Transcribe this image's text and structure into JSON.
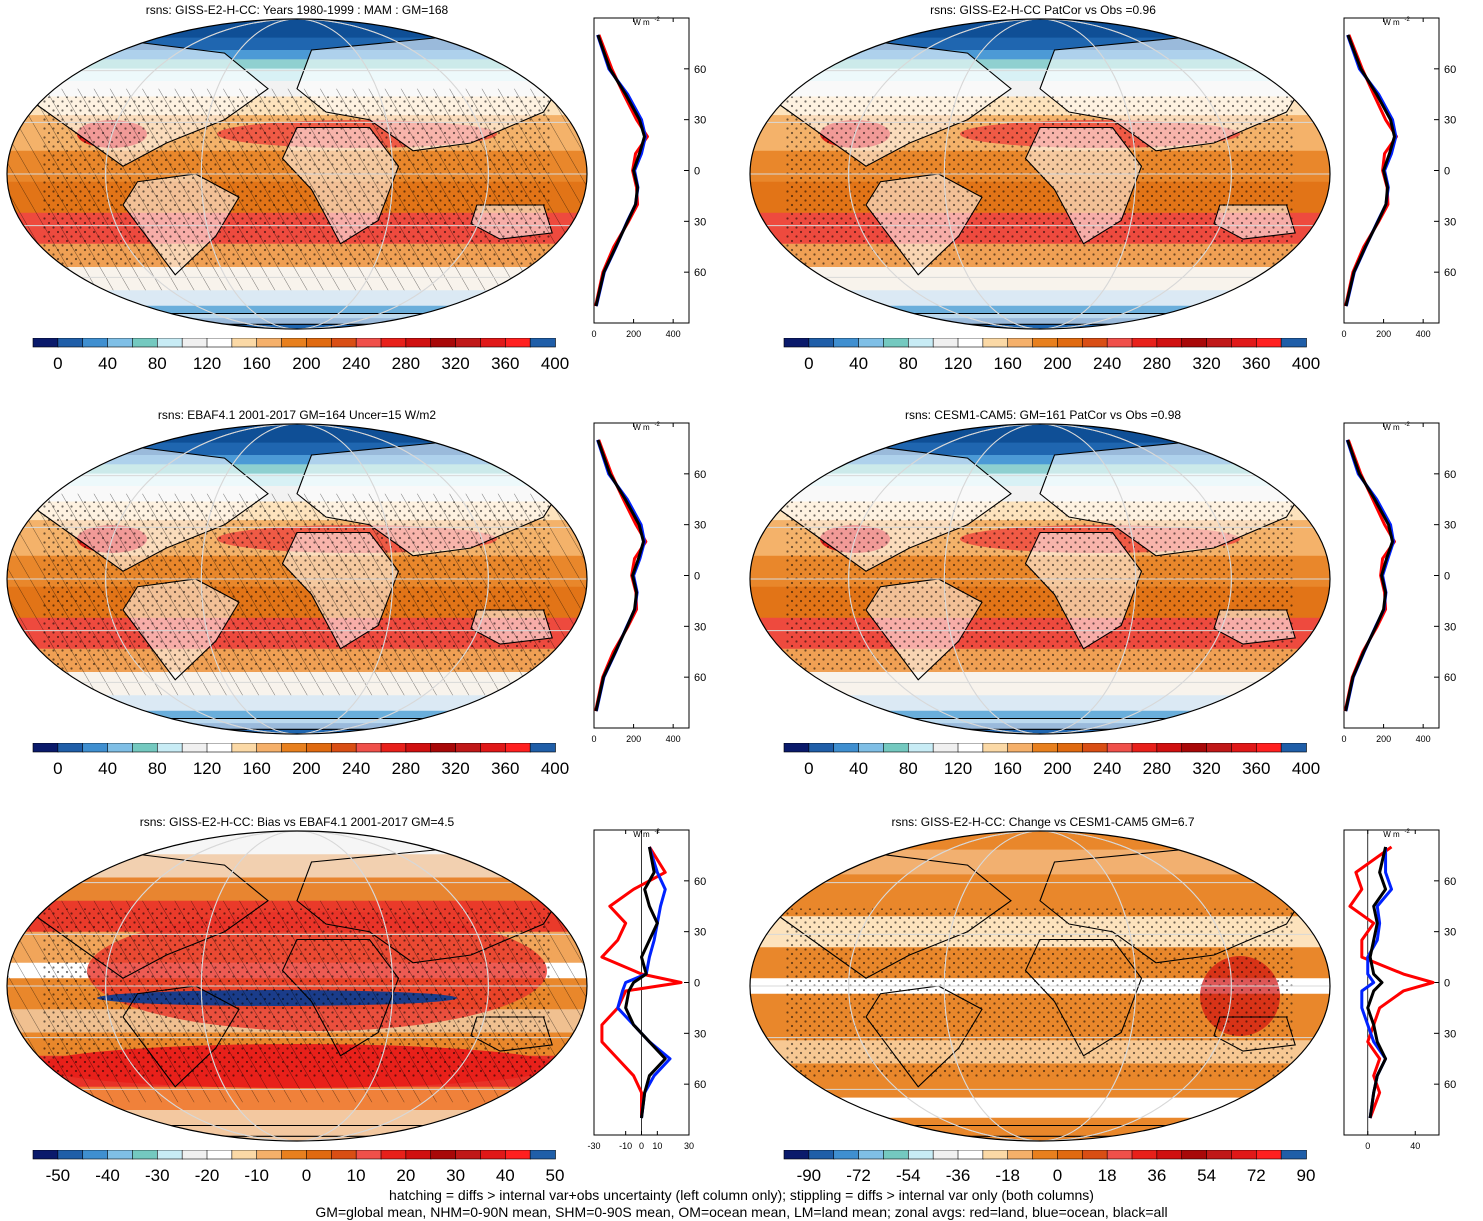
{
  "panels": [
    {
      "id": "p1",
      "title": "rsns: GISS-E2-H-CC: Years 1980-1999 : MAM : GM=168",
      "kind": "abs",
      "cbar": "abs",
      "zonal_ticks": [
        "0",
        "200",
        "400"
      ],
      "zonal_range": [
        0,
        480
      ],
      "lat_labels": [
        "60N",
        "30N",
        "0",
        "30S",
        "60S"
      ]
    },
    {
      "id": "p2",
      "title": "rsns: GISS-E2-H-CC PatCor vs Obs =0.96",
      "kind": "abs",
      "cbar": "abs",
      "zonal_ticks": [
        "0",
        "200",
        "400"
      ],
      "zonal_range": [
        0,
        480
      ],
      "lat_labels": [
        "60N",
        "30N",
        "0",
        "30S",
        "60S"
      ]
    },
    {
      "id": "p3",
      "title": "rsns: EBAF4.1 2001-2017 GM=164 Uncer=15 W/m2",
      "kind": "abs",
      "cbar": "abs",
      "zonal_ticks": [
        "0",
        "200",
        "400"
      ],
      "zonal_range": [
        0,
        480
      ],
      "lat_labels": [
        "60N",
        "30N",
        "0",
        "30S",
        "60S"
      ]
    },
    {
      "id": "p4",
      "title": "rsns: CESM1-CAM5: GM=161 PatCor vs Obs =0.98",
      "kind": "abs",
      "cbar": "abs",
      "zonal_ticks": [
        "0",
        "200",
        "400"
      ],
      "zonal_range": [
        0,
        480
      ],
      "lat_labels": [
        "60N",
        "30N",
        "0",
        "30S",
        "60S"
      ]
    },
    {
      "id": "p5",
      "title": "rsns: GISS-E2-H-CC: Bias vs EBAF4.1 2001-2017 GM=4.5",
      "kind": "bias",
      "cbar": "bias",
      "zonal_ticks": [
        "-30",
        "-10",
        "0",
        "10",
        "30"
      ],
      "zonal_range": [
        -30,
        30
      ],
      "lat_labels": [
        "60N",
        "30N",
        "0",
        "30S",
        "60S"
      ]
    },
    {
      "id": "p6",
      "title": "rsns: GISS-E2-H-CC: Change vs CESM1-CAM5 GM=6.7",
      "kind": "change",
      "cbar": "change",
      "zonal_ticks": [
        "0",
        "40"
      ],
      "zonal_range": [
        -20,
        60
      ],
      "lat_labels": [
        "60N",
        "30N",
        "0",
        "30S",
        "60S"
      ]
    }
  ],
  "zonal_unit": "W m",
  "zonal_unit_sup": "-2",
  "colorbars": {
    "abs": {
      "labels": [
        "0",
        "40",
        "80",
        "120",
        "160",
        "200",
        "240",
        "280",
        "320",
        "360",
        "400"
      ],
      "colors": [
        "#0a1a6b",
        "#1f5ea8",
        "#3f8fd0",
        "#7fbfe6",
        "#74c9c0",
        "#c8ecf5",
        "#f0f0f0",
        "#ffffff",
        "#fbd9a6",
        "#f5b06a",
        "#e8801e",
        "#e06a10",
        "#d94e14",
        "#f0504a",
        "#e8201a",
        "#d01010",
        "#a80808",
        "#c01818",
        "#e01818",
        "#ff2020",
        "#1f5ea8"
      ]
    },
    "bias": {
      "labels": [
        "-50",
        "-40",
        "-30",
        "-20",
        "-10",
        "0",
        "10",
        "20",
        "30",
        "40",
        "50"
      ],
      "colors": [
        "#0a1a6b",
        "#1f5ea8",
        "#3f8fd0",
        "#7fbfe6",
        "#74c9c0",
        "#c8ecf5",
        "#f0f0f0",
        "#ffffff",
        "#fbd9a6",
        "#f5b06a",
        "#e8801e",
        "#e06a10",
        "#d94e14",
        "#f0504a",
        "#e8201a",
        "#d01010",
        "#a80808",
        "#c01818",
        "#e01818",
        "#ff2020",
        "#1f5ea8"
      ]
    },
    "change": {
      "labels": [
        "-90",
        "-72",
        "-54",
        "-36",
        "-18",
        "0",
        "18",
        "36",
        "54",
        "72",
        "90"
      ],
      "colors": [
        "#0a1a6b",
        "#1f5ea8",
        "#3f8fd0",
        "#7fbfe6",
        "#74c9c0",
        "#c8ecf5",
        "#f0f0f0",
        "#ffffff",
        "#fbd9a6",
        "#f5b06a",
        "#e8801e",
        "#e06a10",
        "#d94e14",
        "#f0504a",
        "#e8201a",
        "#d01010",
        "#a80808",
        "#c01818",
        "#e01818",
        "#ff2020",
        "#1f5ea8"
      ]
    }
  },
  "footer": {
    "line1": "hatching = diffs > internal var+obs uncertainty (left column only); stippling = diffs > internal var only (both columns)",
    "line2": "GM=global mean, NHM=0-90N mean, SHM=0-90S mean, OM=ocean mean, LM=land mean; zonal avgs: red=land, blue=ocean, black=all"
  },
  "chart_data": [
    {
      "type": "heatmap",
      "title": "rsns: GISS-E2-H-CC: Years 1980-1999 : MAM : GM=168",
      "units": "W m-2",
      "colorbar_range": [
        0,
        400
      ],
      "zonal_profile": {
        "lat": [
          80,
          60,
          45,
          30,
          20,
          10,
          0,
          -10,
          -20,
          -30,
          -45,
          -60,
          -80
        ],
        "all": [
          20,
          80,
          160,
          230,
          255,
          230,
          200,
          220,
          210,
          170,
          110,
          50,
          10
        ],
        "land": [
          25,
          90,
          150,
          215,
          270,
          210,
          195,
          215,
          220,
          175,
          100,
          45,
          8
        ],
        "ocean": [
          18,
          75,
          170,
          240,
          260,
          240,
          205,
          222,
          210,
          168,
          112,
          52,
          12
        ]
      }
    },
    {
      "type": "heatmap",
      "title": "rsns: GISS-E2-H-CC PatCor vs Obs =0.96",
      "units": "W m-2",
      "colorbar_range": [
        0,
        400
      ],
      "zonal_profile": {
        "lat": [
          80,
          60,
          45,
          30,
          20,
          10,
          0,
          -10,
          -20,
          -30,
          -45,
          -60,
          -80
        ],
        "all": [
          20,
          85,
          165,
          235,
          255,
          230,
          200,
          220,
          212,
          172,
          108,
          50,
          10
        ],
        "land": [
          25,
          92,
          150,
          210,
          265,
          205,
          195,
          218,
          222,
          176,
          100,
          45,
          8
        ],
        "ocean": [
          18,
          78,
          175,
          245,
          262,
          240,
          205,
          224,
          212,
          170,
          110,
          52,
          12
        ]
      }
    },
    {
      "type": "heatmap",
      "title": "rsns: EBAF4.1 2001-2017 GM=164 Uncer=15 W/m2",
      "units": "W m-2",
      "colorbar_range": [
        0,
        400
      ],
      "zonal_profile": {
        "lat": [
          80,
          60,
          45,
          30,
          20,
          10,
          0,
          -10,
          -20,
          -30,
          -45,
          -60,
          -80
        ],
        "all": [
          20,
          80,
          158,
          228,
          250,
          225,
          195,
          215,
          205,
          168,
          108,
          48,
          10
        ],
        "land": [
          24,
          88,
          148,
          212,
          262,
          205,
          190,
          212,
          215,
          172,
          98,
          44,
          8
        ],
        "ocean": [
          18,
          74,
          168,
          238,
          255,
          232,
          200,
          218,
          206,
          166,
          110,
          50,
          12
        ]
      }
    },
    {
      "type": "heatmap",
      "title": "rsns: CESM1-CAM5: GM=161 PatCor vs Obs =0.98",
      "units": "W m-2",
      "colorbar_range": [
        0,
        400
      ],
      "zonal_profile": {
        "lat": [
          80,
          60,
          45,
          30,
          20,
          10,
          0,
          -10,
          -20,
          -30,
          -45,
          -60,
          -80
        ],
        "all": [
          18,
          78,
          155,
          225,
          245,
          215,
          190,
          210,
          200,
          162,
          100,
          45,
          8
        ],
        "land": [
          22,
          85,
          145,
          205,
          255,
          195,
          185,
          205,
          210,
          168,
          95,
          42,
          6
        ],
        "ocean": [
          16,
          72,
          165,
          235,
          250,
          222,
          195,
          212,
          202,
          160,
          102,
          47,
          10
        ]
      }
    },
    {
      "type": "heatmap",
      "title": "rsns: GISS-E2-H-CC: Bias vs EBAF4.1 2001-2017 GM=4.5",
      "units": "W m-2",
      "colorbar_range": [
        -50,
        50
      ],
      "zonal_profile": {
        "lat": [
          80,
          65,
          55,
          45,
          35,
          25,
          15,
          5,
          0,
          -5,
          -15,
          -25,
          -35,
          -45,
          -55,
          -65,
          -80
        ],
        "all": [
          5,
          8,
          2,
          5,
          10,
          5,
          0,
          3,
          -5,
          -8,
          -10,
          -5,
          5,
          15,
          5,
          2,
          0
        ],
        "land": [
          5,
          15,
          -5,
          -20,
          -10,
          -15,
          -25,
          0,
          25,
          -10,
          -15,
          -25,
          -25,
          -15,
          -5,
          0,
          0
        ],
        "ocean": [
          5,
          10,
          15,
          12,
          10,
          8,
          5,
          3,
          -10,
          -12,
          -15,
          -5,
          5,
          18,
          8,
          2,
          0
        ]
      }
    },
    {
      "type": "heatmap",
      "title": "rsns: GISS-E2-H-CC: Change vs CESM1-CAM5 GM=6.7",
      "units": "W m-2",
      "colorbar_range": [
        -90,
        90
      ],
      "zonal_profile": {
        "lat": [
          80,
          65,
          55,
          45,
          35,
          25,
          15,
          5,
          0,
          -5,
          -15,
          -25,
          -35,
          -45,
          -55,
          -65,
          -80
        ],
        "all": [
          15,
          10,
          15,
          5,
          8,
          5,
          2,
          5,
          12,
          5,
          0,
          5,
          8,
          15,
          8,
          5,
          2
        ],
        "land": [
          20,
          -10,
          -5,
          -15,
          5,
          -5,
          -5,
          30,
          55,
          30,
          10,
          5,
          0,
          10,
          5,
          10,
          2
        ],
        "ocean": [
          15,
          15,
          20,
          8,
          10,
          8,
          0,
          0,
          5,
          -5,
          -5,
          0,
          5,
          15,
          8,
          5,
          2
        ]
      }
    }
  ]
}
